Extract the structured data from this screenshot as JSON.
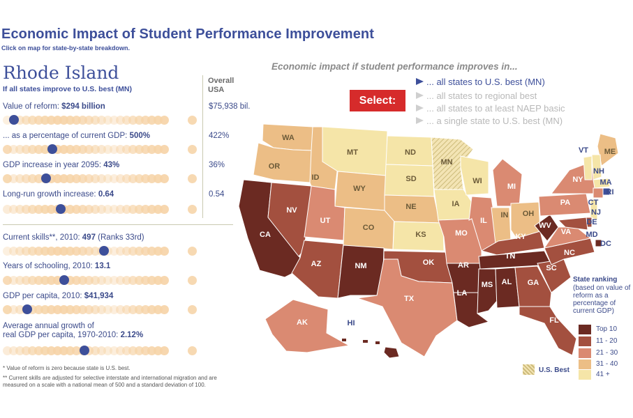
{
  "header": {
    "title": "Economic Impact of Student Performance Improvement",
    "subtitle": "Click on map for state-by-state breakdown."
  },
  "panel": {
    "state_name": "Rhode Island",
    "scenario_subhead": "If all states improve to U.S. best (MN)",
    "overall_head": [
      "Overall",
      "USA"
    ],
    "metrics": [
      {
        "label": "Value of reform: ",
        "value": "$294 billion",
        "overall": "$75,938 bil.",
        "rank_fraction": 0.04
      },
      {
        "label": "... as a percentage of current GDP: ",
        "value": "500%",
        "overall": "422%",
        "rank_fraction": 0.28
      },
      {
        "label": "GDP increase in year 2095: ",
        "value": "43%",
        "overall": "36%",
        "rank_fraction": 0.24
      },
      {
        "label": "Long-run growth increase: ",
        "value": "0.64",
        "overall": "0.54",
        "rank_fraction": 0.33
      }
    ],
    "indicators": [
      {
        "label": "Current skills**, 2010: ",
        "value": "497",
        "extra": " (Ranks 33rd)",
        "rank_fraction": 0.6
      },
      {
        "label": "Years of schooling, 2010: ",
        "value": "13.1",
        "extra": "",
        "rank_fraction": 0.35
      },
      {
        "label": "GDP per capita, 2010: ",
        "value": "$41,934",
        "extra": "",
        "rank_fraction": 0.12
      },
      {
        "label_line1": "Average annual growth of",
        "label": "real GDP per capita, 1970-2010: ",
        "value": "2.12%",
        "extra": "",
        "rank_fraction": 0.48
      }
    ],
    "footnote1": "* Value of reform is zero because state is U.S. best.",
    "footnote2": "** Current skills are adjusted for selective interstate and international migration and are measured on a scale with a national mean of 500 and a standard deviation of 100."
  },
  "controls": {
    "impact_heading": "Economic impact if student performance improves in...",
    "select_label": "Select:",
    "scenarios": [
      {
        "label": "... all states to U.S. best (MN)",
        "active": true
      },
      {
        "label": "... all states to regional best",
        "active": false
      },
      {
        "label": "... all states to at least NAEP basic",
        "active": false
      },
      {
        "label": "... a single state to U.S. best (MN)",
        "active": false
      }
    ]
  },
  "colors": {
    "top10": "#6b2a22",
    "r11_20": "#a3503f",
    "r21_30": "#da8a72",
    "r31_40": "#ecbe86",
    "r41plus": "#f5e5a8",
    "us_best_hatch": "#cdbb7a",
    "accent": "#3d4f9a",
    "select_red": "#d62b2b"
  },
  "legend": {
    "title": "State ranking",
    "description": "(based on value of reform as a percentage of current GDP)",
    "items": [
      {
        "label": "Top 10",
        "color": "#6b2a22"
      },
      {
        "label": "11 - 20",
        "color": "#a3503f"
      },
      {
        "label": "21 - 30",
        "color": "#da8a72"
      },
      {
        "label": "31 - 40",
        "color": "#ecbe86"
      },
      {
        "label": "41 +",
        "color": "#f5e5a8"
      }
    ],
    "us_best": "U.S. Best"
  },
  "map": {
    "states": [
      {
        "abbr": "WA",
        "tier": "r31_40"
      },
      {
        "abbr": "OR",
        "tier": "r31_40"
      },
      {
        "abbr": "CA",
        "tier": "top10"
      },
      {
        "abbr": "NV",
        "tier": "r11_20"
      },
      {
        "abbr": "ID",
        "tier": "r31_40"
      },
      {
        "abbr": "MT",
        "tier": "r41plus"
      },
      {
        "abbr": "WY",
        "tier": "r31_40"
      },
      {
        "abbr": "UT",
        "tier": "r21_30"
      },
      {
        "abbr": "AZ",
        "tier": "r11_20"
      },
      {
        "abbr": "CO",
        "tier": "r31_40"
      },
      {
        "abbr": "NM",
        "tier": "top10"
      },
      {
        "abbr": "ND",
        "tier": "r41plus"
      },
      {
        "abbr": "SD",
        "tier": "r41plus"
      },
      {
        "abbr": "NE",
        "tier": "r31_40"
      },
      {
        "abbr": "KS",
        "tier": "r41plus"
      },
      {
        "abbr": "OK",
        "tier": "r11_20"
      },
      {
        "abbr": "TX",
        "tier": "r21_30"
      },
      {
        "abbr": "MN",
        "tier": "us_best"
      },
      {
        "abbr": "IA",
        "tier": "r41plus"
      },
      {
        "abbr": "MO",
        "tier": "r21_30"
      },
      {
        "abbr": "AR",
        "tier": "top10"
      },
      {
        "abbr": "LA",
        "tier": "top10"
      },
      {
        "abbr": "WI",
        "tier": "r41plus"
      },
      {
        "abbr": "IL",
        "tier": "r21_30"
      },
      {
        "abbr": "MI",
        "tier": "r21_30"
      },
      {
        "abbr": "IN",
        "tier": "r31_40"
      },
      {
        "abbr": "OH",
        "tier": "r31_40"
      },
      {
        "abbr": "KY",
        "tier": "r11_20"
      },
      {
        "abbr": "TN",
        "tier": "top10"
      },
      {
        "abbr": "MS",
        "tier": "top10"
      },
      {
        "abbr": "AL",
        "tier": "top10"
      },
      {
        "abbr": "GA",
        "tier": "r11_20"
      },
      {
        "abbr": "FL",
        "tier": "r11_20"
      },
      {
        "abbr": "SC",
        "tier": "r11_20"
      },
      {
        "abbr": "NC",
        "tier": "r11_20"
      },
      {
        "abbr": "VA",
        "tier": "r21_30"
      },
      {
        "abbr": "WV",
        "tier": "top10"
      },
      {
        "abbr": "PA",
        "tier": "r21_30"
      },
      {
        "abbr": "NY",
        "tier": "r21_30"
      },
      {
        "abbr": "ME",
        "tier": "r31_40"
      },
      {
        "abbr": "VT",
        "tier": "r41plus"
      },
      {
        "abbr": "NH",
        "tier": "r41plus"
      },
      {
        "abbr": "MA",
        "tier": "r41plus"
      },
      {
        "abbr": "RI",
        "tier": "selected"
      },
      {
        "abbr": "CT",
        "tier": "r21_30"
      },
      {
        "abbr": "NJ",
        "tier": "r41plus"
      },
      {
        "abbr": "DE",
        "tier": "r11_20"
      },
      {
        "abbr": "MD",
        "tier": "r11_20"
      },
      {
        "abbr": "DC",
        "tier": "top10"
      },
      {
        "abbr": "AK",
        "tier": "r21_30"
      },
      {
        "abbr": "HI",
        "tier": "top10"
      }
    ]
  }
}
